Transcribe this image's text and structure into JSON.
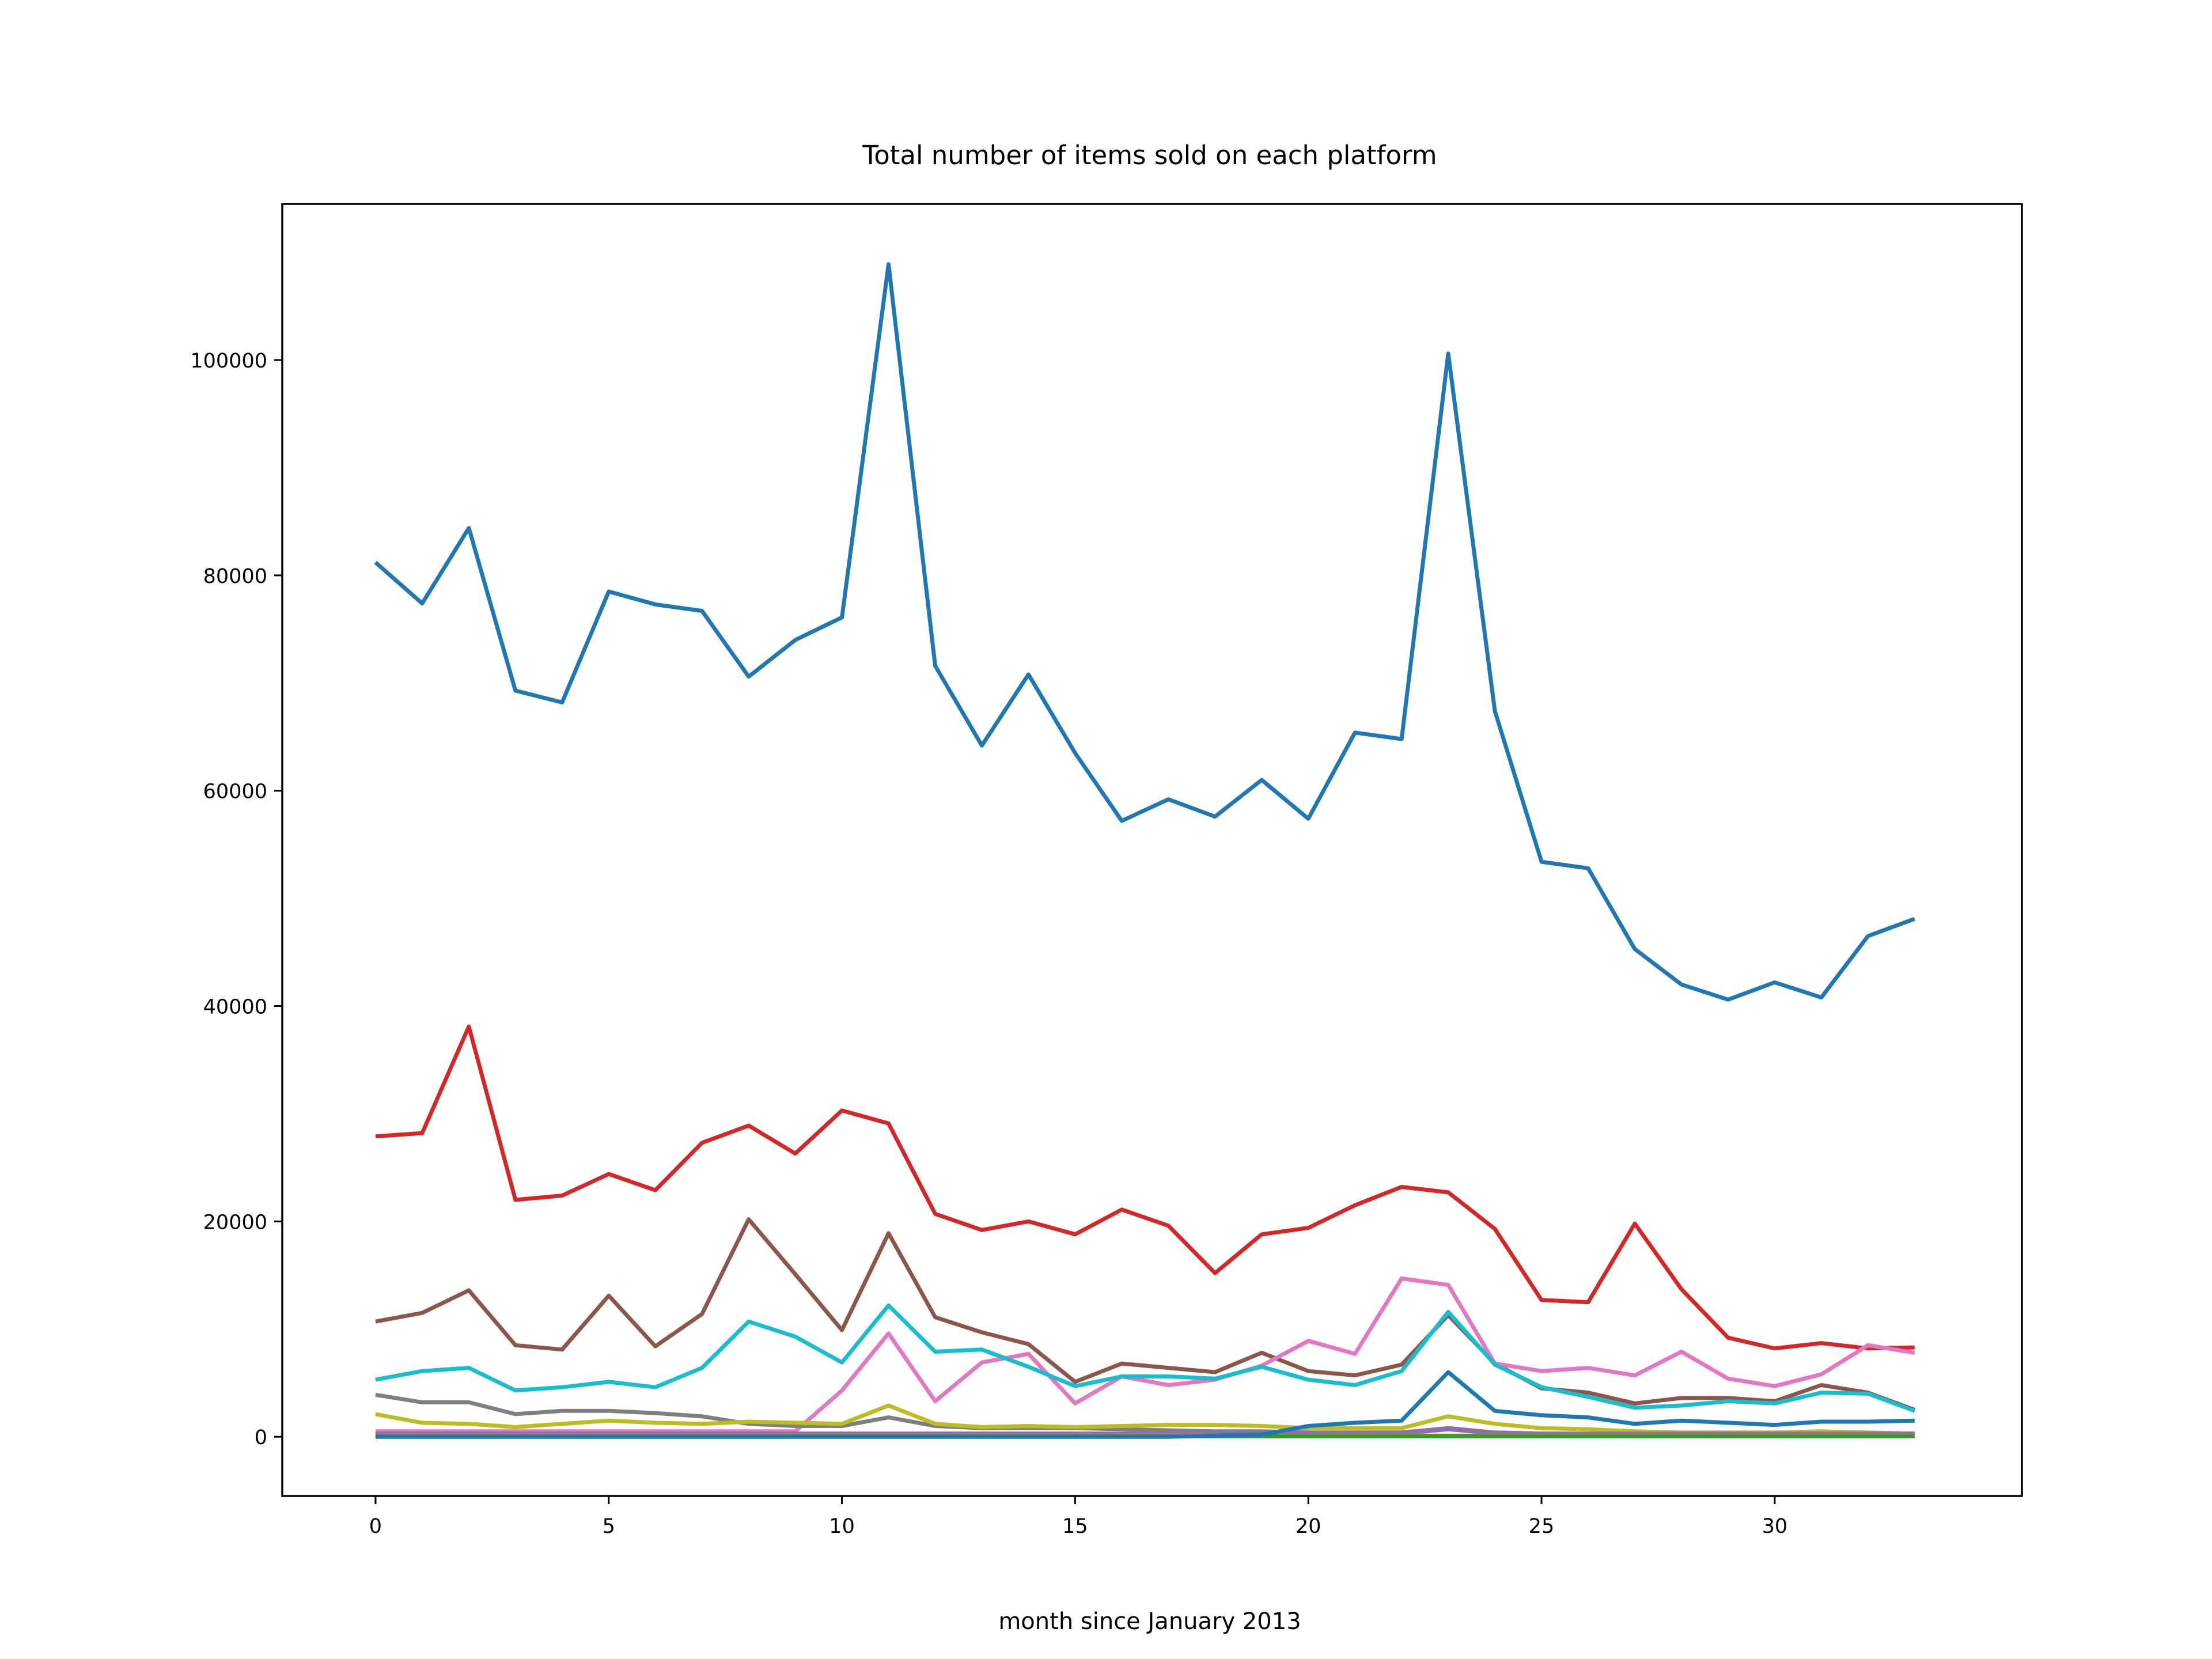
{
  "chart_data": {
    "type": "line",
    "title": "Total number of items sold on each platform",
    "xlabel": "month since January 2013",
    "ylabel": "",
    "xlim": [
      -2,
      35.3
    ],
    "ylim": [
      -5500,
      114500
    ],
    "xticks": [
      0,
      5,
      10,
      15,
      20,
      25,
      30
    ],
    "yticks": [
      0,
      20000,
      40000,
      60000,
      80000,
      100000
    ],
    "grid": false,
    "x": [
      0,
      1,
      2,
      3,
      4,
      5,
      6,
      7,
      8,
      9,
      10,
      11,
      12,
      13,
      14,
      15,
      16,
      17,
      18,
      19,
      20,
      21,
      22,
      23,
      24,
      25,
      26,
      27,
      28,
      29,
      30,
      31,
      32,
      33
    ],
    "series": [
      {
        "color": "#1f77b4",
        "values": [
          81200,
          77400,
          84400,
          69300,
          68200,
          78500,
          77300,
          76700,
          70600,
          74000,
          76100,
          108900,
          71600,
          64200,
          70800,
          63500,
          57200,
          59200,
          57600,
          61000,
          57400,
          65400,
          64800,
          100600,
          67400,
          53400,
          52800,
          45300,
          42000,
          40600,
          42200,
          40800,
          46500,
          48100
        ]
      },
      {
        "color": "#d62728",
        "values": [
          27900,
          28200,
          38100,
          22000,
          22400,
          24400,
          22900,
          27300,
          28900,
          26300,
          30300,
          29100,
          20700,
          19200,
          20000,
          18800,
          21100,
          19600,
          15200,
          18800,
          19400,
          21500,
          23200,
          22700,
          19300,
          12700,
          12500,
          19800,
          13700,
          9200,
          8200,
          8700,
          8200,
          8300
        ]
      },
      {
        "color": "#8c564b",
        "values": [
          10700,
          11500,
          13600,
          8500,
          8100,
          13100,
          8400,
          11400,
          20200,
          15100,
          9900,
          18900,
          11100,
          9700,
          8600,
          5100,
          6800,
          6400,
          6000,
          7800,
          6100,
          5700,
          6700,
          11300,
          6800,
          4500,
          4100,
          3100,
          3600,
          3600,
          3300,
          4800,
          4100,
          2500
        ]
      },
      {
        "color": "#e377c2",
        "values": [
          500,
          500,
          500,
          500,
          500,
          500,
          500,
          500,
          500,
          500,
          4300,
          9600,
          3300,
          6900,
          7700,
          3100,
          5600,
          4800,
          5300,
          6600,
          8900,
          7700,
          14700,
          14100,
          6800,
          6100,
          6400,
          5700,
          7900,
          5400,
          4700,
          5800,
          8500,
          7800
        ]
      },
      {
        "color": "#17becf",
        "values": [
          5300,
          6100,
          6400,
          4300,
          4600,
          5100,
          4600,
          6400,
          10700,
          9300,
          6900,
          12200,
          7900,
          8100,
          6500,
          4700,
          5600,
          5600,
          5400,
          6500,
          5300,
          4800,
          6100,
          11600,
          6700,
          4600,
          3700,
          2700,
          2900,
          3300,
          3100,
          4100,
          4000,
          2400
        ]
      },
      {
        "color": "#7f7f7f",
        "values": [
          3900,
          3200,
          3200,
          2100,
          2400,
          2400,
          2200,
          1900,
          1200,
          1000,
          1000,
          1800,
          1000,
          800,
          800,
          800,
          700,
          600,
          500,
          500,
          400,
          400,
          400,
          800,
          400,
          300,
          300,
          200,
          200,
          300,
          200,
          200,
          200,
          200
        ]
      },
      {
        "color": "#bcbd22",
        "values": [
          2100,
          1300,
          1200,
          900,
          1200,
          1500,
          1300,
          1200,
          1400,
          1300,
          1200,
          2900,
          1200,
          900,
          1000,
          900,
          1000,
          1100,
          1100,
          1000,
          800,
          800,
          800,
          1900,
          1200,
          800,
          700,
          500,
          400,
          400,
          400,
          500,
          400,
          300
        ]
      },
      {
        "color": "#9467bd",
        "values": [
          300,
          300,
          300,
          300,
          300,
          300,
          300,
          300,
          300,
          300,
          300,
          300,
          300,
          300,
          300,
          300,
          300,
          300,
          300,
          300,
          300,
          300,
          300,
          700,
          300,
          300,
          300,
          300,
          300,
          300,
          300,
          300,
          300,
          300
        ]
      },
      {
        "color": "#ff7f0e",
        "values": [
          100,
          100,
          100,
          100,
          100,
          100,
          100,
          100,
          100,
          100,
          100,
          100,
          100,
          100,
          100,
          100,
          100,
          100,
          100,
          100,
          100,
          100,
          100,
          100,
          100,
          100,
          100,
          100,
          100,
          100,
          100,
          100,
          100,
          100
        ]
      },
      {
        "color": "#2ca02c",
        "values": [
          50,
          50,
          50,
          50,
          50,
          50,
          50,
          50,
          50,
          50,
          50,
          50,
          50,
          50,
          50,
          50,
          50,
          50,
          50,
          50,
          50,
          50,
          50,
          50,
          50,
          50,
          50,
          50,
          50,
          50,
          50,
          50,
          50,
          50
        ]
      },
      {
        "color": "#1f77b4",
        "values": [
          0,
          0,
          0,
          0,
          0,
          0,
          0,
          0,
          0,
          0,
          0,
          0,
          0,
          0,
          0,
          0,
          0,
          0,
          100,
          200,
          1000,
          1300,
          1500,
          6000,
          2400,
          2000,
          1800,
          1200,
          1500,
          1300,
          1100,
          1400,
          1400,
          1500
        ]
      }
    ]
  }
}
